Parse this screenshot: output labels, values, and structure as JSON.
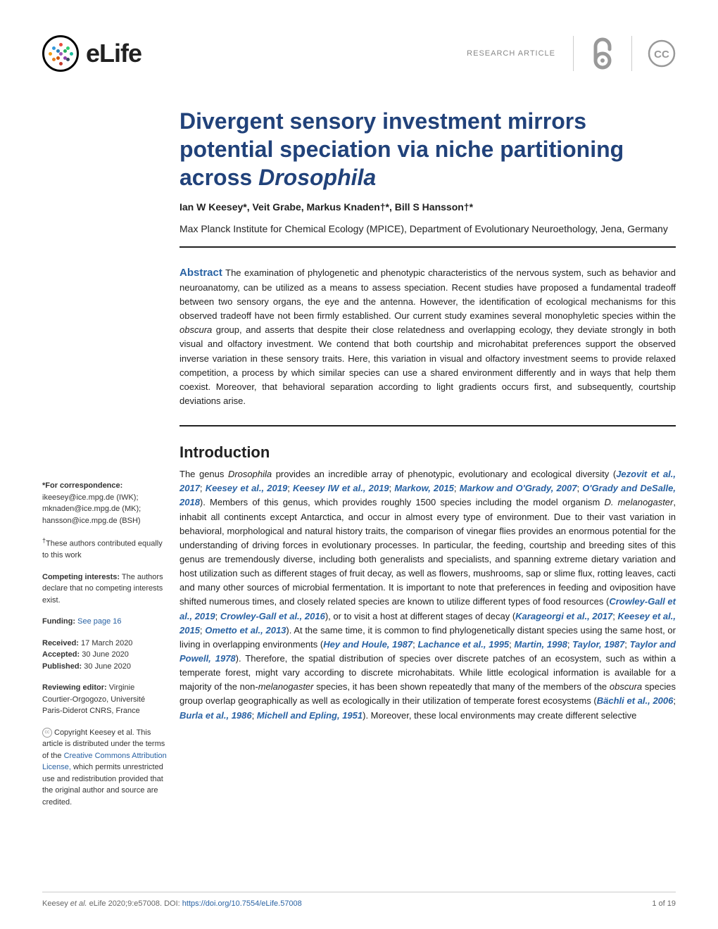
{
  "header": {
    "logo_text": "eLife",
    "article_type": "RESEARCH ARTICLE",
    "logo_dot_colors": [
      "#e74c3c",
      "#3498db",
      "#2ecc71",
      "#f39c12",
      "#9b59b6",
      "#1abc9c",
      "#e67e22",
      "#34495e",
      "#c0392b",
      "#2980b9",
      "#27ae60",
      "#d35400",
      "#8e44ad",
      "#16a085"
    ]
  },
  "title": {
    "line1": "Divergent sensory investment mirrors potential speciation via niche partitioning across ",
    "italic": "Drosophila"
  },
  "authors": "Ian W Keesey*, Veit Grabe, Markus Knaden†*, Bill S Hansson†*",
  "affiliation": "Max Planck Institute for Chemical Ecology (MPICE), Department of Evolutionary Neuroethology, Jena, Germany",
  "abstract": {
    "label": "Abstract",
    "text": "The examination of phylogenetic and phenotypic characteristics of the nervous system, such as behavior and neuroanatomy, can be utilized as a means to assess speciation. Recent studies have proposed a fundamental tradeoff between two sensory organs, the eye and the antenna. However, the identification of ecological mechanisms for this observed tradeoff have not been firmly established. Our current study examines several monophyletic species within the obscura group, and asserts that despite their close relatedness and overlapping ecology, they deviate strongly in both visual and olfactory investment. We contend that both courtship and microhabitat preferences support the observed inverse variation in these sensory traits. Here, this variation in visual and olfactory investment seems to provide relaxed competition, a process by which similar species can use a shared environment differently and in ways that help them coexist. Moreover, that behavioral separation according to light gradients occurs first, and subsequently, courtship deviations arise."
  },
  "sidebar": {
    "correspondence_label": "*For correspondence:",
    "emails": [
      {
        "addr": "ikeesey@ice.mpg.de",
        "who": "(IWK);"
      },
      {
        "addr": "mknaden@ice.mpg.de",
        "who": "(MK);"
      },
      {
        "addr": "hansson@ice.mpg.de",
        "who": "(BSH)"
      }
    ],
    "equal_contrib": "†These authors contributed equally to this work",
    "competing_label": "Competing interests:",
    "competing_text": "The authors declare that no competing interests exist.",
    "funding_label": "Funding:",
    "funding_link": "See page 16",
    "received_label": "Received:",
    "received_date": "17 March 2020",
    "accepted_label": "Accepted:",
    "accepted_date": "30 June 2020",
    "published_label": "Published:",
    "published_date": "30 June 2020",
    "reviewing_label": "Reviewing editor:",
    "reviewing_text": "Virginie Courtier-Orgogozo, Université Paris-Diderot CNRS, France",
    "copyright_text1": "Copyright Keesey et al. This article is distributed under the terms of the ",
    "copyright_link": "Creative Commons Attribution License,",
    "copyright_text2": " which permits unrestricted use and redistribution provided that the original author and source are credited."
  },
  "intro": {
    "heading": "Introduction",
    "body_html": "The genus <span class='italic'>Drosophila</span> provides an incredible array of phenotypic, evolutionary and ecological diversity (<span class='ref'>Jezovit et al., 2017</span>; <span class='ref'>Keesey et al., 2019</span>; <span class='ref'>Keesey IW et al., 2019</span>; <span class='ref'>Markow, 2015</span>; <span class='ref'>Markow and O'Grady, 2007</span>; <span class='ref'>O'Grady and DeSalle, 2018</span>). Members of this genus, which provides roughly 1500 species including the model organism <span class='italic'>D. melanogaster</span>, inhabit all continents except Antarctica, and occur in almost every type of environment. Due to their vast variation in behavioral, morphological and natural history traits, the comparison of vinegar flies provides an enormous potential for the understanding of driving forces in evolutionary processes. In particular, the feeding, courtship and breeding sites of this genus are tremendously diverse, including both generalists and specialists, and spanning extreme dietary variation and host utilization such as different stages of fruit decay, as well as flowers, mushrooms, sap or slime flux, rotting leaves, cacti and many other sources of microbial fermentation. It is important to note that preferences in feeding and oviposition have shifted numerous times, and closely related species are known to utilize different types of food resources (<span class='ref'>Crowley-Gall et al., 2019</span>; <span class='ref'>Crowley-Gall et al., 2016</span>), or to visit a host at different stages of decay (<span class='ref'>Karageorgi et al., 2017</span>; <span class='ref'>Keesey et al., 2015</span>; <span class='ref'>Ometto et al., 2013</span>). At the same time, it is common to find phylogenetically distant species using the same host, or living in overlapping environments (<span class='ref'>Hey and Houle, 1987</span>; <span class='ref'>Lachance et al., 1995</span>; <span class='ref'>Martin, 1998</span>; <span class='ref'>Taylor, 1987</span>; <span class='ref'>Taylor and Powell, 1978</span>). Therefore, the spatial distribution of species over discrete patches of an ecosystem, such as within a temperate forest, might vary according to discrete microhabitats. While little ecological information is available for a majority of the non-<span class='italic'>melanogaster</span> species, it has been shown repeatedly that many of the members of the <span class='italic'>obscura</span> species group overlap geographically as well as ecologically in their utilization of temperate forest ecosystems (<span class='ref'>Bächli et al., 2006</span>; <span class='ref'>Burla et al., 1986</span>; <span class='ref'>Michell and Epling, 1951</span>). Moreover, these local environments may create different selective"
  },
  "footer": {
    "citation_pre": "Keesey ",
    "citation_italic": "et al.",
    "citation_mid": " eLife 2020;9:e57008. DOI: ",
    "doi": "https://doi.org/10.7554/eLife.57008",
    "page": "1 of 19"
  },
  "colors": {
    "title_color": "#21427a",
    "link_color": "#2962a3",
    "text_color": "#212121",
    "muted": "#888"
  }
}
